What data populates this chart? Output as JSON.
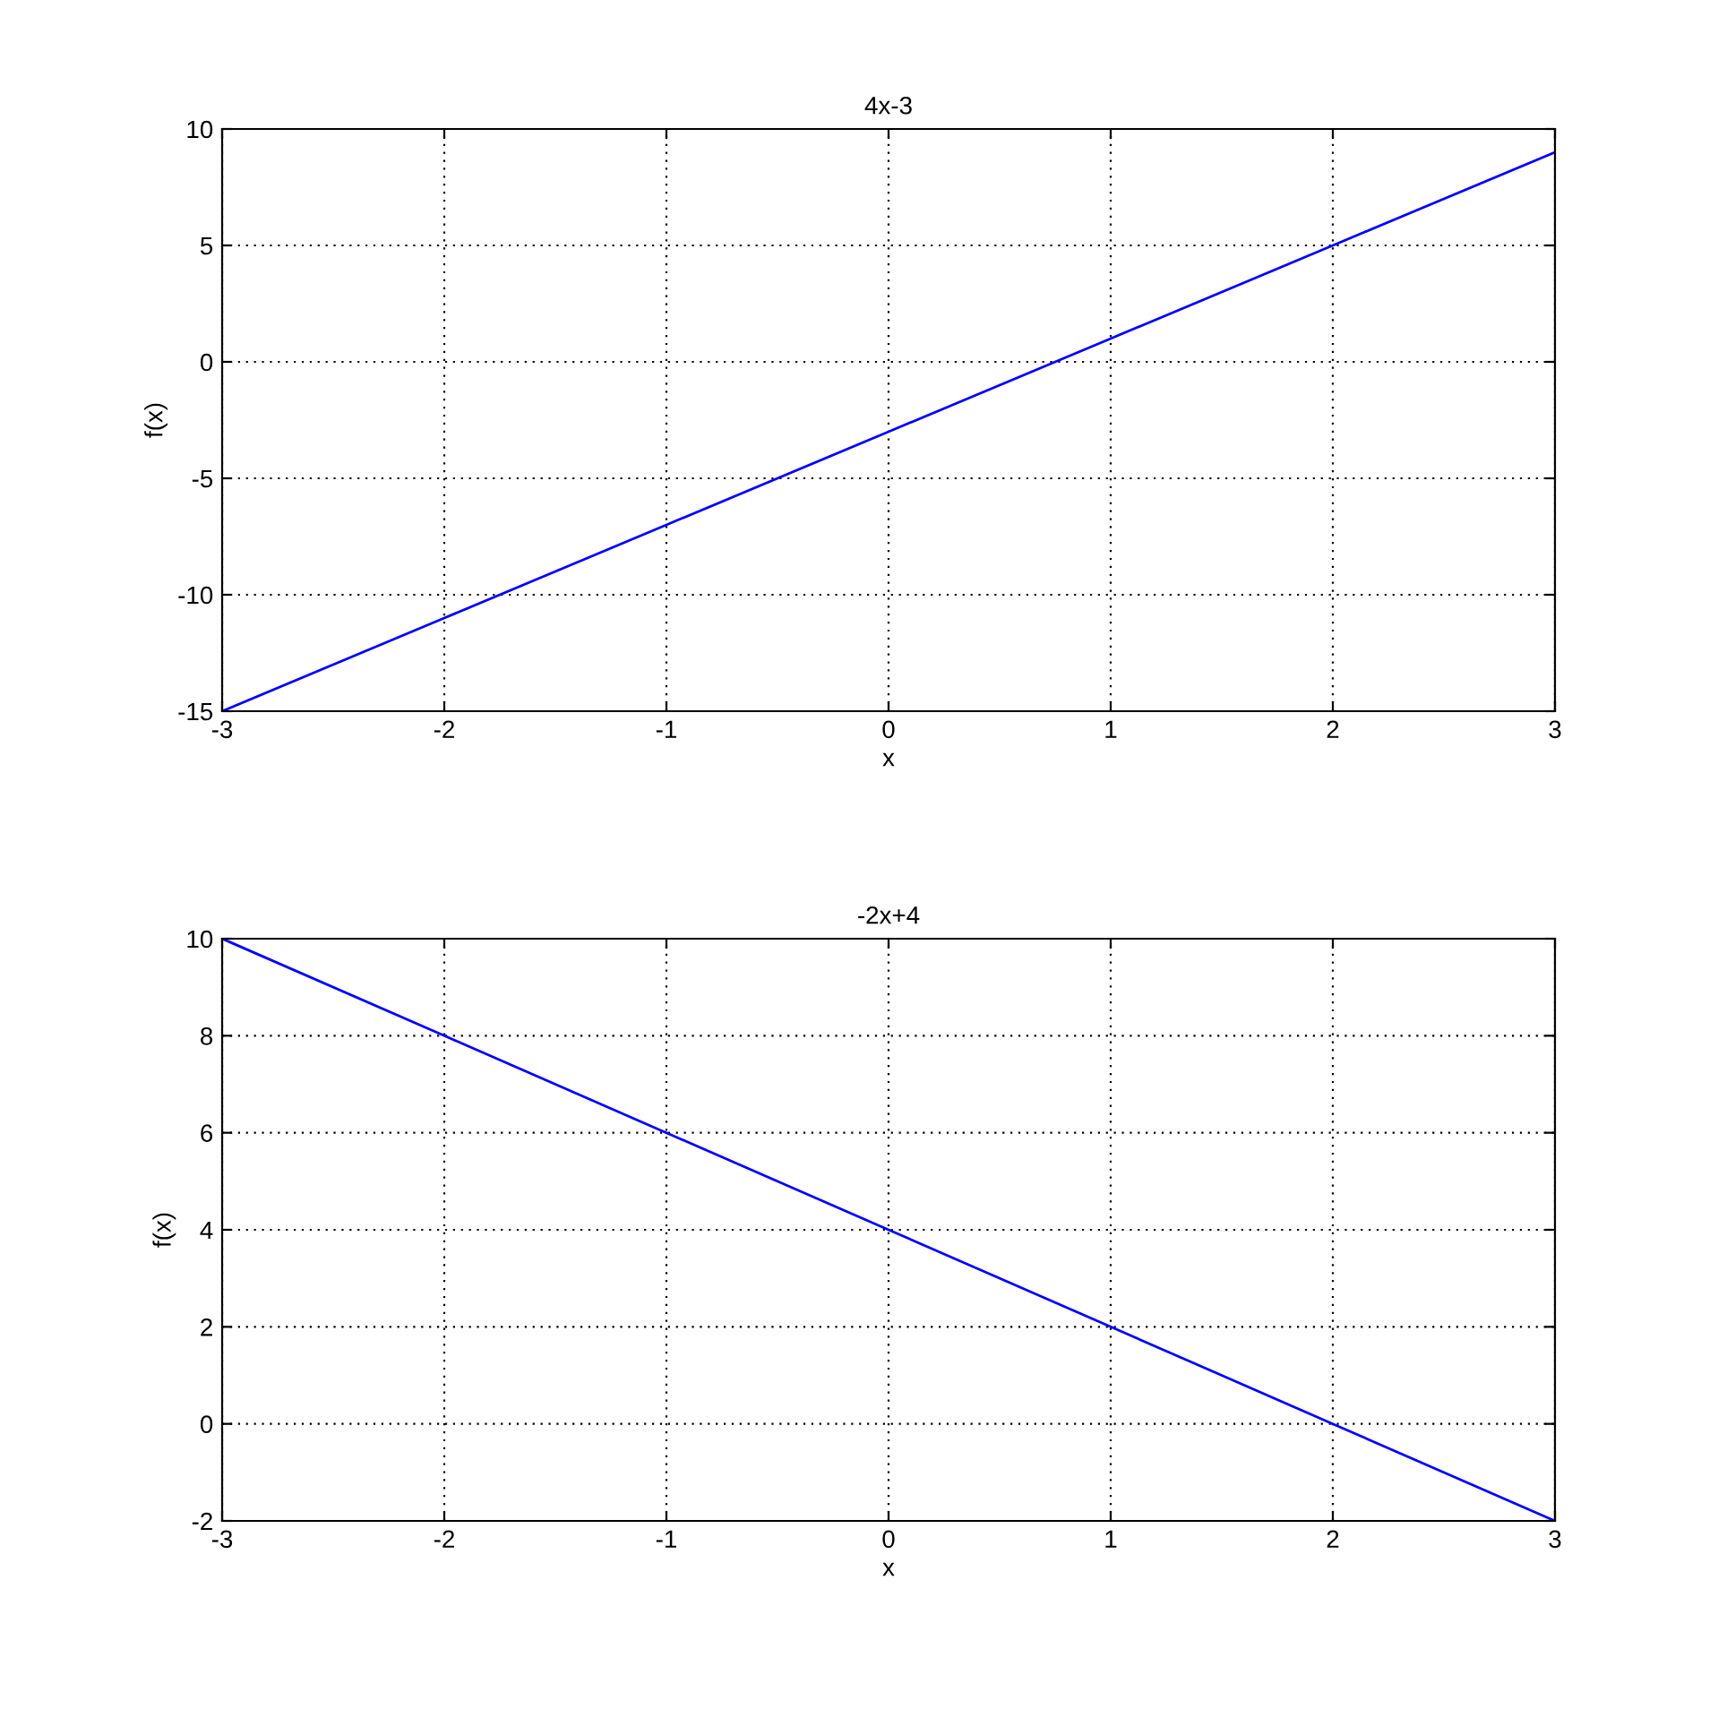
{
  "chart_data": [
    {
      "type": "line",
      "title": "4x-3",
      "xlabel": "x",
      "ylabel": "f(x)",
      "x": [
        -3,
        -2,
        -1,
        0,
        1,
        2,
        3
      ],
      "series": [
        {
          "color": "#0000ff",
          "values": [
            -15,
            -11,
            -7,
            -3,
            1,
            5,
            9
          ]
        }
      ],
      "xlim": [
        -3,
        3
      ],
      "xticks": [
        -3,
        -2,
        -1,
        0,
        1,
        2,
        3
      ],
      "ylim": [
        -15,
        10
      ],
      "yticks": [
        -15,
        -10,
        -5,
        0,
        5,
        10
      ],
      "grid": true
    },
    {
      "type": "line",
      "title": "-2x+4",
      "xlabel": "x",
      "ylabel": "f(x)",
      "x": [
        -3,
        -2,
        -1,
        0,
        1,
        2,
        3
      ],
      "series": [
        {
          "color": "#0000ff",
          "values": [
            10,
            8,
            6,
            4,
            2,
            0,
            -2
          ]
        }
      ],
      "xlim": [
        -3,
        3
      ],
      "xticks": [
        -3,
        -2,
        -1,
        0,
        1,
        2,
        3
      ],
      "ylim": [
        -2,
        10
      ],
      "yticks": [
        -2,
        0,
        2,
        4,
        6,
        8,
        10
      ],
      "grid": true
    }
  ]
}
